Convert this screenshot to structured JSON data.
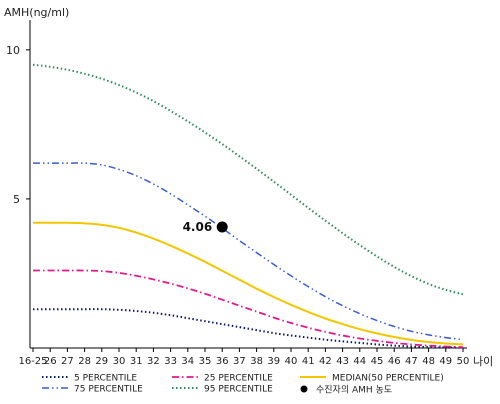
{
  "chart_data": {
    "type": "line",
    "ylabel": "AMH(ng/ml)",
    "xlabel": "나이",
    "ylim": [
      0,
      11
    ],
    "y_ticks": [
      5,
      10
    ],
    "categories": [
      "16-25",
      "26",
      "27",
      "28",
      "29",
      "30",
      "31",
      "32",
      "33",
      "34",
      "35",
      "36",
      "37",
      "38",
      "39",
      "40",
      "41",
      "42",
      "43",
      "44",
      "45",
      "46",
      "47",
      "48",
      "49",
      "50"
    ],
    "series": [
      {
        "name": "5 PERCENTILE",
        "color": "#0a1a6b",
        "style": "dotted",
        "values": [
          1.3,
          1.3,
          1.3,
          1.3,
          1.3,
          1.28,
          1.24,
          1.18,
          1.1,
          1.0,
          0.9,
          0.8,
          0.7,
          0.6,
          0.5,
          0.42,
          0.35,
          0.28,
          0.22,
          0.17,
          0.12,
          0.08,
          0.05,
          0.03,
          0.02,
          0.01
        ]
      },
      {
        "name": "25 PERCENTILE",
        "color": "#e2188f",
        "style": "dashdot",
        "values": [
          2.6,
          2.6,
          2.6,
          2.6,
          2.58,
          2.52,
          2.42,
          2.3,
          2.16,
          2.0,
          1.82,
          1.62,
          1.42,
          1.22,
          1.02,
          0.84,
          0.68,
          0.54,
          0.42,
          0.32,
          0.24,
          0.17,
          0.12,
          0.08,
          0.05,
          0.03
        ]
      },
      {
        "name": "MEDIAN(50 PERCENTILE)",
        "color": "#f2c600",
        "style": "solid",
        "values": [
          4.2,
          4.2,
          4.2,
          4.18,
          4.13,
          4.03,
          3.87,
          3.67,
          3.43,
          3.17,
          2.89,
          2.59,
          2.29,
          1.99,
          1.71,
          1.45,
          1.21,
          0.99,
          0.8,
          0.63,
          0.49,
          0.37,
          0.27,
          0.2,
          0.15,
          0.12
        ]
      },
      {
        "name": "75 PERCENTILE",
        "color": "#3a5ec8",
        "style": "dashdotdot",
        "values": [
          6.2,
          6.2,
          6.2,
          6.2,
          6.14,
          5.99,
          5.78,
          5.5,
          5.17,
          4.8,
          4.42,
          4.02,
          3.6,
          3.2,
          2.8,
          2.42,
          2.06,
          1.72,
          1.42,
          1.15,
          0.92,
          0.72,
          0.56,
          0.44,
          0.35,
          0.28
        ]
      },
      {
        "name": "95 PERCENTILE",
        "color": "#2e8b57",
        "style": "dotted",
        "values": [
          9.5,
          9.43,
          9.33,
          9.2,
          9.03,
          8.82,
          8.57,
          8.28,
          7.95,
          7.6,
          7.23,
          6.84,
          6.43,
          6.01,
          5.58,
          5.14,
          4.7,
          4.27,
          3.85,
          3.45,
          3.07,
          2.72,
          2.41,
          2.15,
          1.95,
          1.8
        ]
      }
    ],
    "marker": {
      "label": "수진자의 AMH 농도",
      "x": "36",
      "y": 4.06,
      "value_label": "4.06",
      "color": "#000000"
    },
    "legend_position": "bottom",
    "grid": false
  }
}
